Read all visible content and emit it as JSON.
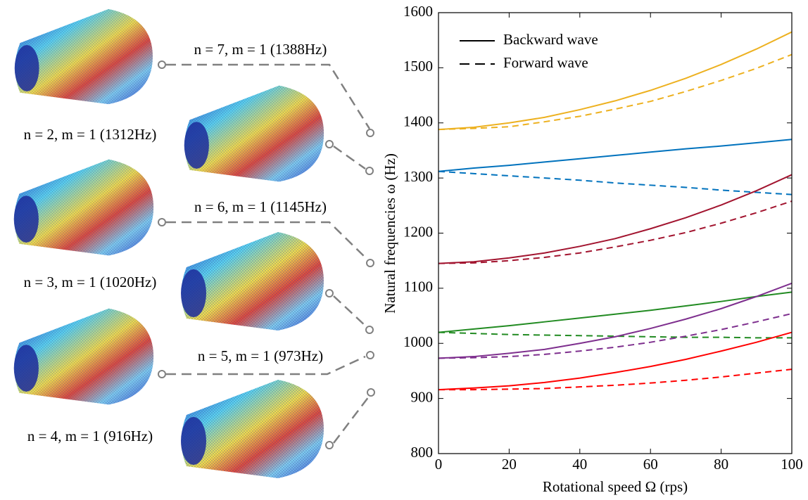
{
  "chart_data": {
    "type": "line",
    "x_label": "Rotational speed Ω (rps)",
    "y_label": "Natural frequencies ω (Hz)",
    "x": [
      0,
      10,
      20,
      30,
      40,
      50,
      60,
      70,
      80,
      90,
      100
    ],
    "xlim": [
      0,
      100
    ],
    "xticks": [
      0,
      20,
      40,
      60,
      80,
      100
    ],
    "ylim": [
      800,
      1600
    ],
    "yticks": [
      800,
      900,
      1000,
      1100,
      1200,
      1300,
      1400,
      1500,
      1600
    ],
    "legend_position": "upper left",
    "legend": [
      {
        "name": "Backward wave",
        "dash": false
      },
      {
        "name": "Forward wave",
        "dash": true
      }
    ],
    "series": [
      {
        "color": "#EDB120",
        "dash": false,
        "values": [
          1388,
          1392,
          1400,
          1410,
          1424,
          1440,
          1459,
          1481,
          1506,
          1534,
          1565
        ]
      },
      {
        "color": "#EDB120",
        "dash": true,
        "values": [
          1388,
          1390,
          1393,
          1402,
          1412,
          1425,
          1439,
          1457,
          1477,
          1499,
          1524
        ]
      },
      {
        "color": "#0072BD",
        "dash": false,
        "values": [
          1312,
          1318,
          1323,
          1329,
          1335,
          1341,
          1347,
          1353,
          1358,
          1364,
          1370
        ]
      },
      {
        "color": "#0072BD",
        "dash": true,
        "values": [
          1312,
          1308,
          1304,
          1300,
          1296,
          1291,
          1287,
          1283,
          1278,
          1274,
          1270
        ]
      },
      {
        "color": "#A2142F",
        "dash": false,
        "values": [
          1145,
          1148,
          1155,
          1164,
          1176,
          1190,
          1208,
          1228,
          1251,
          1277,
          1306
        ]
      },
      {
        "color": "#A2142F",
        "dash": true,
        "values": [
          1145,
          1146,
          1150,
          1156,
          1164,
          1175,
          1187,
          1201,
          1218,
          1237,
          1258
        ]
      },
      {
        "color": "#228B22",
        "dash": false,
        "values": [
          1020,
          1026,
          1032,
          1039,
          1046,
          1053,
          1060,
          1068,
          1076,
          1085,
          1093
        ]
      },
      {
        "color": "#228B22",
        "dash": true,
        "values": [
          1020,
          1018,
          1016,
          1015,
          1014,
          1013,
          1012,
          1011,
          1011,
          1010,
          1010
        ]
      },
      {
        "color": "#7E2F8E",
        "dash": false,
        "values": [
          973,
          976,
          982,
          989,
          1000,
          1012,
          1027,
          1044,
          1063,
          1085,
          1109
        ]
      },
      {
        "color": "#7E2F8E",
        "dash": true,
        "values": [
          973,
          974,
          976,
          980,
          986,
          993,
          1002,
          1013,
          1025,
          1039,
          1054
        ]
      },
      {
        "color": "#FF0000",
        "dash": false,
        "values": [
          916,
          919,
          923,
          929,
          937,
          947,
          958,
          971,
          986,
          1002,
          1020
        ]
      },
      {
        "color": "#FF0000",
        "dash": true,
        "values": [
          916,
          916,
          917,
          918,
          921,
          924,
          928,
          933,
          939,
          946,
          953
        ]
      }
    ],
    "mode_labels": [
      "n = 7, m = 1 (1388Hz)",
      "n = 2, m = 1 (1312Hz)",
      "n = 6, m = 1 (1145Hz)",
      "n = 3, m = 1 (1020Hz)",
      "n = 5, m = 1 (973Hz)",
      "n = 4, m = 1 (916Hz)"
    ]
  }
}
